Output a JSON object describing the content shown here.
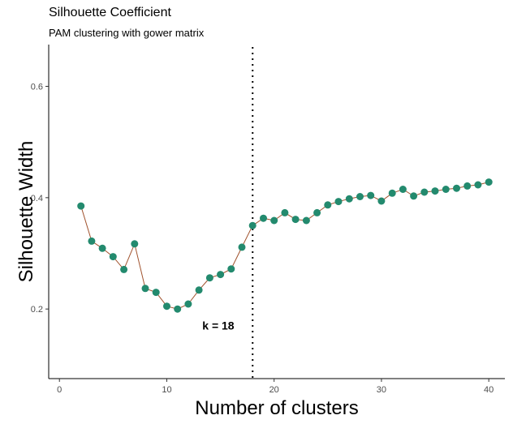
{
  "chart_data": {
    "type": "line",
    "title": "Silhouette Coefficient",
    "subtitle": "PAM clustering with gower matrix",
    "xlabel": "Number of clusters",
    "ylabel": "Silhouette Width",
    "xlim": [
      -1,
      41.5
    ],
    "ylim": [
      0.075,
      0.675
    ],
    "x_ticks": [
      0,
      10,
      20,
      30,
      40
    ],
    "y_ticks": [
      0.2,
      0.4,
      0.6
    ],
    "y_tick_labels": [
      "0.2",
      "0.4",
      "0.6"
    ],
    "grid": false,
    "line_color": "#a0522d",
    "point_color": "#238a6e",
    "optimal_k": 18,
    "annotation": "k = 18",
    "series": [
      {
        "x": [
          2,
          3,
          4,
          5,
          6,
          7,
          8,
          9,
          10,
          11,
          12,
          13,
          14,
          15,
          16,
          17,
          18,
          19,
          20,
          21,
          22,
          23,
          24,
          25,
          26,
          27,
          28,
          29,
          30,
          31,
          32,
          33,
          34,
          35,
          36,
          37,
          38,
          39,
          40
        ],
        "values": [
          0.385,
          0.322,
          0.309,
          0.294,
          0.271,
          0.317,
          0.237,
          0.23,
          0.205,
          0.2,
          0.209,
          0.234,
          0.256,
          0.262,
          0.272,
          0.311,
          0.35,
          0.363,
          0.359,
          0.373,
          0.361,
          0.359,
          0.373,
          0.387,
          0.393,
          0.398,
          0.402,
          0.404,
          0.394,
          0.408,
          0.415,
          0.403,
          0.41,
          0.412,
          0.415,
          0.417,
          0.421,
          0.423,
          0.428
        ]
      }
    ]
  }
}
